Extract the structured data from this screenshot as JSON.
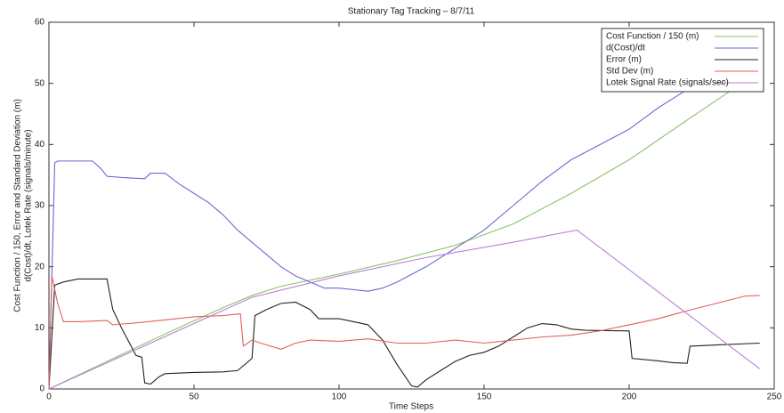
{
  "chart_data": {
    "type": "line",
    "title": "Stationary Tag Tracking – 8/7/11",
    "xlabel": "Time Steps",
    "ylabel": [
      "Cost Function / 150, Error and Standard Deviation (m)",
      "d(Cost)/dt, Lotek Rate (signals/minute)"
    ],
    "xlim": [
      0,
      250
    ],
    "xticks": [
      0,
      50,
      100,
      150,
      200,
      250
    ],
    "ylim": [
      0,
      60
    ],
    "yticks": [
      0,
      10,
      20,
      30,
      40,
      50,
      60
    ],
    "grid": false,
    "legend": "upper right",
    "series": [
      {
        "name": "Cost Function / 150 (m)",
        "color": "#8fc26a",
        "x": [
          0,
          20,
          40,
          60,
          70,
          80,
          100,
          120,
          140,
          160,
          180,
          200,
          220,
          245
        ],
        "values": [
          0,
          4.5,
          9,
          13.3,
          15.3,
          16.8,
          18.8,
          21,
          23.5,
          27,
          32,
          37.5,
          44,
          52
        ]
      },
      {
        "name": "d(Cost)/dt",
        "color": "#6a6ad0",
        "x": [
          0,
          2,
          3,
          15,
          18,
          20,
          25,
          33,
          35,
          40,
          45,
          50,
          55,
          60,
          65,
          70,
          75,
          80,
          85,
          90,
          95,
          100,
          110,
          115,
          120,
          130,
          140,
          150,
          160,
          170,
          180,
          190,
          200,
          210,
          220,
          225,
          230
        ],
        "values": [
          0,
          37,
          37.3,
          37.3,
          36,
          34.8,
          34.6,
          34.4,
          35.3,
          35.3,
          33.5,
          32,
          30.5,
          28.5,
          26,
          24,
          22,
          20,
          18.5,
          17.5,
          16.5,
          16.5,
          16,
          16.5,
          17.5,
          20,
          23,
          26,
          30,
          34,
          37.5,
          40,
          42.5,
          46,
          49,
          51,
          52
        ]
      },
      {
        "name": "Error (m)",
        "color": "#222222",
        "x": [
          0,
          2,
          5,
          10,
          20,
          22,
          25,
          30,
          32,
          33,
          35,
          38,
          40,
          50,
          60,
          65,
          70,
          71,
          75,
          80,
          85,
          90,
          93,
          100,
          105,
          110,
          115,
          120,
          125,
          127,
          130,
          135,
          140,
          145,
          150,
          155,
          160,
          165,
          170,
          175,
          180,
          185,
          200,
          201,
          210,
          215,
          220,
          221,
          230,
          245
        ],
        "values": [
          0,
          17,
          17.5,
          18,
          18,
          13,
          10,
          5.5,
          5.2,
          1,
          0.8,
          2,
          2.5,
          2.7,
          2.8,
          3,
          5,
          12,
          13,
          14,
          14.2,
          13,
          11.5,
          11.5,
          11,
          10.5,
          8,
          4,
          0.5,
          0.3,
          1.5,
          3,
          4.5,
          5.5,
          6,
          7,
          8.5,
          10,
          10.7,
          10.5,
          9.8,
          9.6,
          9.5,
          5,
          4.6,
          4.3,
          4.2,
          7,
          7.2,
          7.5
        ]
      },
      {
        "name": "Std Dev (m)",
        "color": "#e06060",
        "x": [
          0,
          1,
          3,
          5,
          10,
          20,
          22,
          30,
          40,
          50,
          60,
          66,
          67,
          70,
          73,
          80,
          85,
          90,
          100,
          110,
          120,
          130,
          140,
          150,
          160,
          170,
          180,
          190,
          200,
          210,
          220,
          230,
          240,
          245
        ],
        "values": [
          0,
          18.5,
          14,
          11,
          11,
          11.2,
          10.5,
          10.8,
          11.3,
          11.8,
          12,
          12.3,
          7,
          8,
          7.5,
          6.5,
          7.5,
          8,
          7.8,
          8.2,
          7.5,
          7.5,
          8,
          7.5,
          8,
          8.5,
          8.8,
          9.5,
          10.5,
          11.5,
          12.8,
          14,
          15.2,
          15.3
        ]
      },
      {
        "name": "Lotek Signal Rate (signals/sec)",
        "color": "#b77fd6",
        "x": [
          0,
          70,
          100,
          130,
          160,
          182,
          245
        ],
        "values": [
          0,
          15,
          18.5,
          21.5,
          24,
          26,
          3.3
        ]
      }
    ]
  }
}
